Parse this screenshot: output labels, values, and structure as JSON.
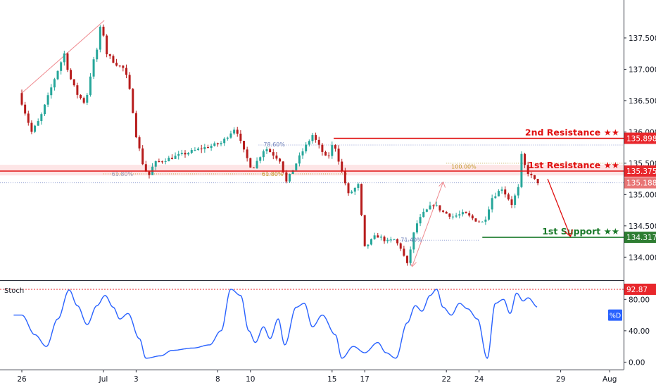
{
  "chart_data": [
    {
      "type": "candlestick",
      "price_scale": {
        "ticks": [
          "134.000",
          "134.500",
          "135.000",
          "135.500",
          "136.000",
          "136.500",
          "137.000",
          "137.500"
        ],
        "ylim": [
          133.7,
          138.05
        ]
      },
      "x_axis": {
        "labels": [
          {
            "label": "26",
            "day": 0
          },
          {
            "label": "Jul",
            "day": 5
          },
          {
            "label": "3",
            "day": 7
          },
          {
            "label": "8",
            "day": 12
          },
          {
            "label": "10",
            "day": 14
          },
          {
            "label": "15",
            "day": 19
          },
          {
            "label": "17",
            "day": 21
          },
          {
            "label": "22",
            "day": 26
          },
          {
            "label": "24",
            "day": 28
          },
          {
            "label": "29",
            "day": 33
          },
          {
            "label": "Aug",
            "day": 36
          }
        ]
      },
      "price_path": [
        {
          "day": 0,
          "price": 136.62
        },
        {
          "day": 0.8,
          "price": 136.0
        },
        {
          "day": 1.3,
          "price": 136.2
        },
        {
          "day": 2.2,
          "price": 136.85
        },
        {
          "day": 2.8,
          "price": 137.25
        },
        {
          "day": 3.1,
          "price": 136.9
        },
        {
          "day": 3.6,
          "price": 136.6
        },
        {
          "day": 4.1,
          "price": 136.45
        },
        {
          "day": 4.5,
          "price": 137.05
        },
        {
          "day": 4.9,
          "price": 137.4
        },
        {
          "day": 5.05,
          "price": 137.78
        },
        {
          "day": 5.4,
          "price": 137.25
        },
        {
          "day": 5.9,
          "price": 137.1
        },
        {
          "day": 6.5,
          "price": 137.0
        },
        {
          "day": 6.9,
          "price": 136.55
        },
        {
          "day": 7.15,
          "price": 136.0
        },
        {
          "day": 7.6,
          "price": 135.5
        },
        {
          "day": 7.95,
          "price": 135.28
        },
        {
          "day": 8.3,
          "price": 135.5
        },
        {
          "day": 9.5,
          "price": 135.6
        },
        {
          "day": 11,
          "price": 135.72
        },
        {
          "day": 12.4,
          "price": 135.82
        },
        {
          "day": 13.3,
          "price": 136.08
        },
        {
          "day": 13.7,
          "price": 135.75
        },
        {
          "day": 14.3,
          "price": 135.4
        },
        {
          "day": 15.1,
          "price": 135.75
        },
        {
          "day": 16,
          "price": 135.55
        },
        {
          "day": 16.4,
          "price": 135.2
        },
        {
          "day": 17.3,
          "price": 135.65
        },
        {
          "day": 18,
          "price": 135.95
        },
        {
          "day": 18.9,
          "price": 135.55
        },
        {
          "day": 19.3,
          "price": 135.85
        },
        {
          "day": 19.6,
          "price": 135.55
        },
        {
          "day": 20.2,
          "price": 135.0
        },
        {
          "day": 20.8,
          "price": 135.15
        },
        {
          "day": 21.2,
          "price": 134.15
        },
        {
          "day": 21.9,
          "price": 134.35
        },
        {
          "day": 22.6,
          "price": 134.25
        },
        {
          "day": 23,
          "price": 134.28
        },
        {
          "day": 23.4,
          "price": 134.15
        },
        {
          "day": 23.8,
          "price": 133.88
        },
        {
          "day": 24.3,
          "price": 134.5
        },
        {
          "day": 24.8,
          "price": 134.7
        },
        {
          "day": 25.4,
          "price": 134.85
        },
        {
          "day": 26,
          "price": 134.72
        },
        {
          "day": 26.6,
          "price": 134.65
        },
        {
          "day": 27.3,
          "price": 134.7
        },
        {
          "day": 27.9,
          "price": 134.6
        },
        {
          "day": 28.5,
          "price": 134.55
        },
        {
          "day": 29,
          "price": 134.95
        },
        {
          "day": 29.6,
          "price": 135.1
        },
        {
          "day": 30.2,
          "price": 134.85
        },
        {
          "day": 30.6,
          "price": 135.1
        },
        {
          "day": 30.8,
          "price": 135.62
        },
        {
          "day": 31.1,
          "price": 135.38
        },
        {
          "day": 31.7,
          "price": 135.2
        }
      ],
      "stoch_path": [
        {
          "day": 0,
          "value": 60
        },
        {
          "day": 0.8,
          "value": 35
        },
        {
          "day": 1.5,
          "value": 20
        },
        {
          "day": 2.2,
          "value": 55
        },
        {
          "day": 2.9,
          "value": 92
        },
        {
          "day": 3.4,
          "value": 72
        },
        {
          "day": 4.0,
          "value": 48
        },
        {
          "day": 4.6,
          "value": 72
        },
        {
          "day": 5.1,
          "value": 85
        },
        {
          "day": 5.6,
          "value": 70
        },
        {
          "day": 6.0,
          "value": 55
        },
        {
          "day": 6.5,
          "value": 62
        },
        {
          "day": 7.2,
          "value": 30
        },
        {
          "day": 7.6,
          "value": 5
        },
        {
          "day": 8.5,
          "value": 8
        },
        {
          "day": 9.2,
          "value": 15
        },
        {
          "day": 10.5,
          "value": 18
        },
        {
          "day": 11.5,
          "value": 22
        },
        {
          "day": 12.2,
          "value": 40
        },
        {
          "day": 12.8,
          "value": 93
        },
        {
          "day": 13.4,
          "value": 85
        },
        {
          "day": 13.9,
          "value": 40
        },
        {
          "day": 14.3,
          "value": 25
        },
        {
          "day": 14.8,
          "value": 45
        },
        {
          "day": 15.2,
          "value": 30
        },
        {
          "day": 15.7,
          "value": 55
        },
        {
          "day": 16.1,
          "value": 22
        },
        {
          "day": 16.8,
          "value": 70
        },
        {
          "day": 17.3,
          "value": 75
        },
        {
          "day": 17.8,
          "value": 45
        },
        {
          "day": 18.4,
          "value": 60
        },
        {
          "day": 19.2,
          "value": 35
        },
        {
          "day": 19.6,
          "value": 5
        },
        {
          "day": 20.3,
          "value": 20
        },
        {
          "day": 21.0,
          "value": 12
        },
        {
          "day": 21.8,
          "value": 25
        },
        {
          "day": 22.3,
          "value": 12
        },
        {
          "day": 22.9,
          "value": 5
        },
        {
          "day": 23.6,
          "value": 50
        },
        {
          "day": 24.1,
          "value": 72
        },
        {
          "day": 24.5,
          "value": 65
        },
        {
          "day": 25.0,
          "value": 85
        },
        {
          "day": 25.4,
          "value": 93
        },
        {
          "day": 25.8,
          "value": 70
        },
        {
          "day": 26.3,
          "value": 60
        },
        {
          "day": 26.8,
          "value": 75
        },
        {
          "day": 27.3,
          "value": 68
        },
        {
          "day": 27.9,
          "value": 55
        },
        {
          "day": 28.5,
          "value": 5
        },
        {
          "day": 29.0,
          "value": 75
        },
        {
          "day": 29.5,
          "value": 80
        },
        {
          "day": 29.9,
          "value": 62
        },
        {
          "day": 30.3,
          "value": 88
        },
        {
          "day": 30.7,
          "value": 78
        },
        {
          "day": 31.0,
          "value": 82
        },
        {
          "day": 31.6,
          "value": 70
        }
      ],
      "levels": [
        {
          "name": "2nd Resistance",
          "label": "2nd Resistance ★★",
          "value": 135.898,
          "value_text": "135.898",
          "color": "#e01010",
          "tag_color": "#e8272c"
        },
        {
          "name": "1st Resistance",
          "label": "1st Resistance ★★",
          "value": 135.375,
          "value_text": "135.375",
          "color": "#e01010",
          "tag_color": "#e8272c"
        },
        {
          "name": "1st Support",
          "label": "1st Support ★★",
          "value": 134.317,
          "value_text": "134.317",
          "color": "#1a7a2a",
          "tag_color": "#2e7d32"
        }
      ],
      "last_price": {
        "value": 135.188,
        "text": "135.188",
        "color": "#e87676"
      },
      "fib_labels": [
        {
          "text": "78.60%",
          "day": 14.8,
          "price": 135.8,
          "color": "#6d7fb8"
        },
        {
          "text": "61.80%",
          "day": 5.5,
          "price": 135.33,
          "color": "#9aa0b8"
        },
        {
          "text": "61.80%",
          "day": 14.7,
          "price": 135.33,
          "color": "#c29a2a"
        },
        {
          "text": "100.00%",
          "day": 26.3,
          "price": 135.45,
          "color": "#c29a2a"
        },
        {
          "text": "71.40%",
          "day": 23.2,
          "price": 134.28,
          "color": "#6d7fb8"
        }
      ],
      "stoch": {
        "panel_label": "Stoch",
        "ticks": [
          "0.00",
          "40.00",
          "80.00"
        ],
        "ylim": [
          -5,
          100
        ],
        "overbought": {
          "value": 92.87,
          "text": "92.87",
          "color": "#e8272c"
        },
        "d_tag": "%D",
        "line_color": "#2962ff"
      },
      "colors": {
        "up": "#26a69a",
        "down": "#b71c1c",
        "resistance_zone": "#fde5e6",
        "pattern": "#ef8b90",
        "projection": "#e01010",
        "axis_text": "#131722",
        "grid": "#d0d3da"
      }
    }
  ]
}
